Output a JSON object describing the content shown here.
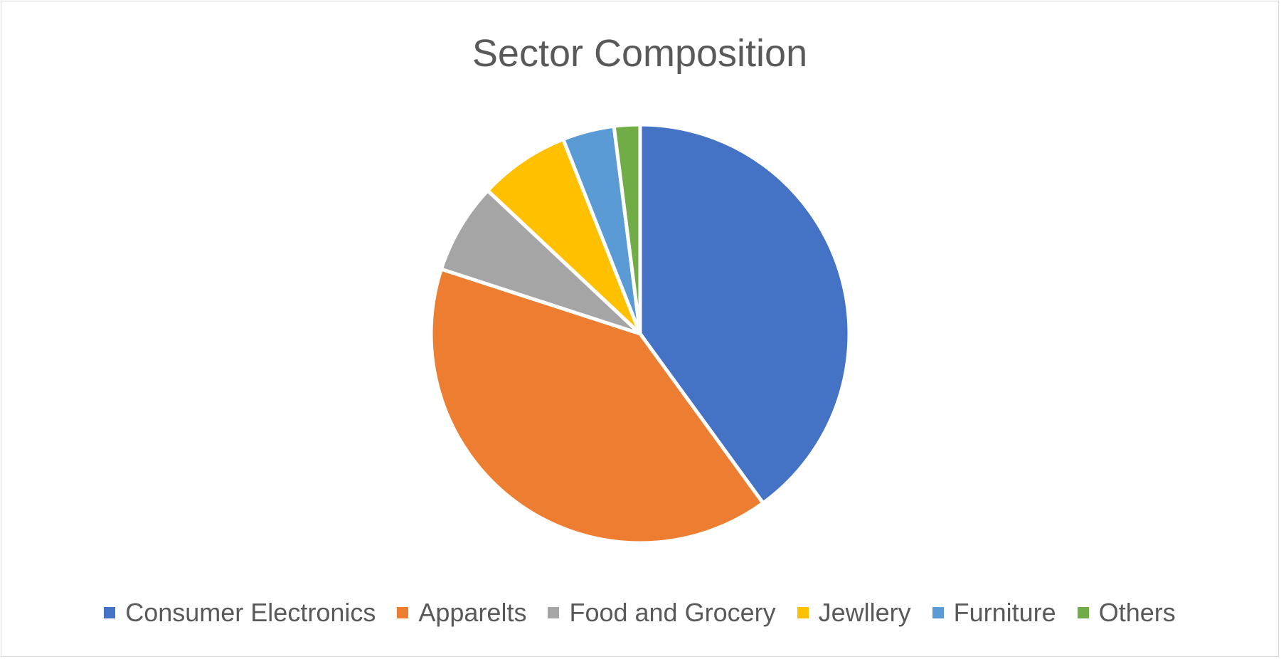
{
  "chart_data": {
    "type": "pie",
    "title": "Sector Composition",
    "categories": [
      "Consumer Electronics",
      "Apparelts",
      "Food and Grocery",
      "Jewllery",
      "Furniture",
      "Others"
    ],
    "values": [
      40,
      40,
      7,
      7,
      4,
      2
    ],
    "unit": "%",
    "colors": [
      "#4472c4",
      "#ed7d31",
      "#a5a5a5",
      "#ffc000",
      "#5b9bd5",
      "#70ad47"
    ],
    "legend_position": "bottom",
    "start_angle": "12 o'clock",
    "direction": "clockwise"
  }
}
